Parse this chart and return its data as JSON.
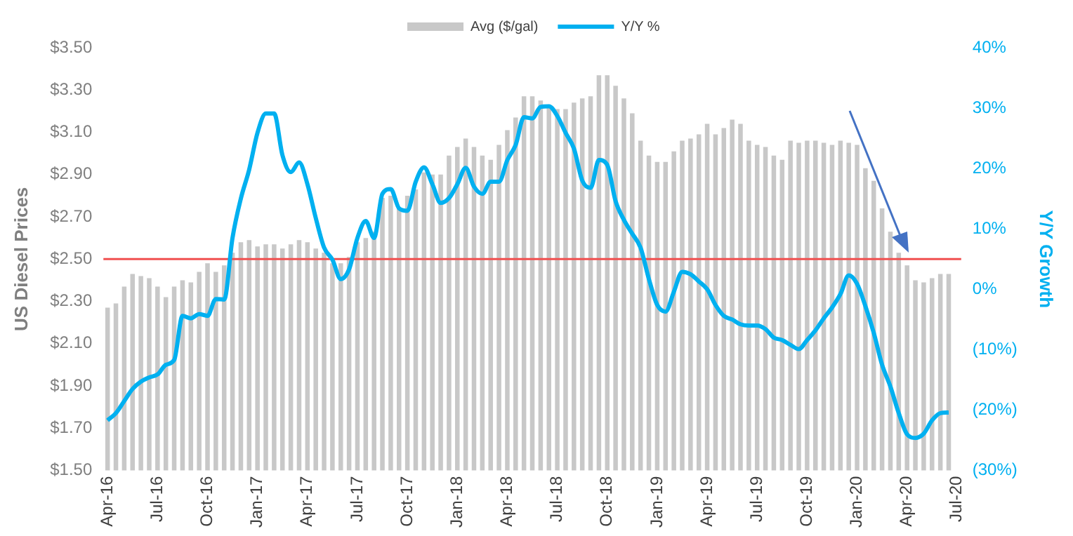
{
  "chart_data": {
    "type": "bar",
    "categories": [
      "Apr-16",
      null,
      null,
      null,
      null,
      null,
      "Jul-16",
      null,
      null,
      null,
      null,
      null,
      "Oct-16",
      null,
      null,
      null,
      null,
      null,
      "Jan-17",
      null,
      null,
      null,
      null,
      null,
      "Apr-17",
      null,
      null,
      null,
      null,
      null,
      "Jul-17",
      null,
      null,
      null,
      null,
      null,
      "Oct-17",
      null,
      null,
      null,
      null,
      null,
      "Jan-18",
      null,
      null,
      null,
      null,
      null,
      "Apr-18",
      null,
      null,
      null,
      null,
      null,
      "Jul-18",
      null,
      null,
      null,
      null,
      null,
      "Oct-18",
      null,
      null,
      null,
      null,
      null,
      "Jan-19",
      null,
      null,
      null,
      null,
      null,
      "Apr-19",
      null,
      null,
      null,
      null,
      null,
      "Jul-19",
      null,
      null,
      null,
      null,
      null,
      "Oct-19",
      null,
      null,
      null,
      null,
      null,
      "Jan-20",
      null,
      null,
      null,
      null,
      null,
      "Apr-20",
      null,
      null,
      null,
      null,
      null,
      "Jul-20"
    ],
    "series": [
      {
        "name": "Avg ($/gal)",
        "color": "#c8c8c8",
        "values": [
          2.27,
          2.29,
          2.37,
          2.43,
          2.42,
          2.41,
          2.37,
          2.32,
          2.37,
          2.4,
          2.39,
          2.44,
          2.48,
          2.44,
          2.47,
          2.53,
          2.58,
          2.59,
          2.56,
          2.57,
          2.57,
          2.55,
          2.57,
          2.59,
          2.58,
          2.55,
          2.53,
          2.48,
          2.48,
          2.51,
          2.58,
          2.6,
          2.63,
          2.79,
          2.8,
          2.74,
          2.8,
          2.83,
          2.91,
          2.9,
          2.9,
          2.99,
          3.03,
          3.07,
          3.03,
          2.99,
          2.97,
          3.04,
          3.11,
          3.17,
          3.27,
          3.27,
          3.25,
          3.22,
          3.21,
          3.21,
          3.24,
          3.26,
          3.27,
          3.37,
          3.37,
          3.32,
          3.26,
          3.19,
          3.06,
          2.99,
          2.96,
          2.96,
          3.01,
          3.06,
          3.07,
          3.09,
          3.14,
          3.09,
          3.12,
          3.16,
          3.14,
          3.06,
          3.04,
          3.03,
          2.99,
          2.97,
          3.06,
          3.05,
          3.06,
          3.06,
          3.05,
          3.04,
          3.06,
          3.05,
          3.04,
          2.93,
          2.87,
          2.74,
          2.63,
          2.53,
          2.47,
          2.4,
          2.39,
          2.41,
          2.43,
          2.43,
          null
        ]
      },
      {
        "name": "Y/Y %",
        "type": "line",
        "axis": "y2",
        "color": "#00b0f0",
        "values": [
          -21.7,
          -20.5,
          -18.5,
          -16.5,
          -15.3,
          -14.6,
          -14.1,
          -12.5,
          -11.7,
          -4.4,
          -4.8,
          -4.1,
          -4.4,
          -1.6,
          -1.7,
          8.5,
          15.0,
          19.8,
          25.9,
          29.1,
          29.1,
          22.2,
          19.4,
          21.0,
          17.4,
          11.8,
          6.9,
          4.9,
          1.7,
          3.3,
          8.5,
          11.3,
          8.5,
          15.8,
          16.6,
          13.4,
          13.0,
          17.8,
          20.2,
          17.4,
          14.3,
          15.1,
          17.4,
          20.1,
          17.0,
          15.8,
          17.8,
          17.8,
          21.4,
          23.9,
          28.5,
          28.3,
          30.2,
          30.3,
          28.7,
          25.9,
          23.3,
          18.0,
          16.8,
          21.4,
          20.6,
          14.6,
          11.5,
          9.2,
          6.9,
          1.7,
          -2.6,
          -3.7,
          -0.4,
          2.9,
          2.5,
          1.3,
          0.0,
          -2.6,
          -4.4,
          -5.0,
          -5.8,
          -6.0,
          -6.0,
          -6.6,
          -8.0,
          -8.4,
          -9.2,
          -9.9,
          -8.4,
          -6.8,
          -4.8,
          -3.0,
          -0.8,
          2.3,
          0.9,
          -2.8,
          -7.2,
          -12.5,
          -16.1,
          -20.5,
          -24.0,
          -24.6,
          -23.9,
          -21.7,
          -20.5,
          -20.4,
          null
        ]
      }
    ],
    "ylabel": "US Diesel Prices",
    "y2label": "Y/Y Growth",
    "ylim": [
      1.5,
      3.5
    ],
    "yticks": [
      {
        "value": 1.5,
        "label": "$1.50"
      },
      {
        "value": 1.7,
        "label": "$1.70"
      },
      {
        "value": 1.9,
        "label": "$1.90"
      },
      {
        "value": 2.1,
        "label": "$2.10"
      },
      {
        "value": 2.3,
        "label": "$2.30"
      },
      {
        "value": 2.5,
        "label": "$2.50"
      },
      {
        "value": 2.7,
        "label": "$2.70"
      },
      {
        "value": 2.9,
        "label": "$2.90"
      },
      {
        "value": 3.1,
        "label": "$3.10"
      },
      {
        "value": 3.3,
        "label": "$3.30"
      },
      {
        "value": 3.5,
        "label": "$3.50"
      }
    ],
    "y2lim": [
      -30,
      40
    ],
    "y2ticks": [
      {
        "value": -30,
        "label": "(30%)"
      },
      {
        "value": -20,
        "label": "(20%)"
      },
      {
        "value": -10,
        "label": "(10%)"
      },
      {
        "value": 0,
        "label": "0%"
      },
      {
        "value": 10,
        "label": "10%"
      },
      {
        "value": 20,
        "label": "20%"
      },
      {
        "value": 30,
        "label": "30%"
      },
      {
        "value": 40,
        "label": "40%"
      }
    ],
    "ref_lines": [
      {
        "axis": "y",
        "value": 2.5,
        "color": "#f05050"
      }
    ],
    "legend": "top",
    "marker": "none"
  }
}
